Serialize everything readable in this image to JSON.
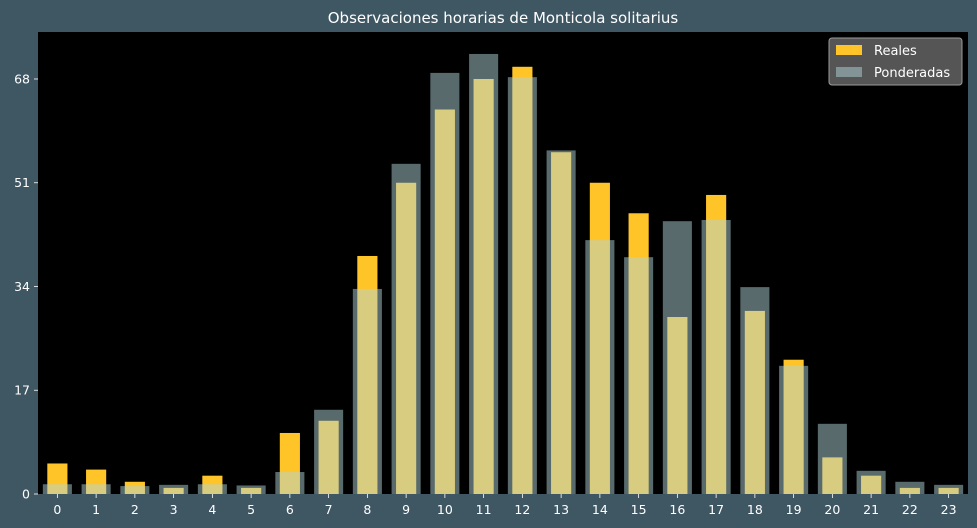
{
  "chart_data": {
    "type": "bar",
    "title": "Observaciones horarias de Monticola solitarius",
    "xlabel": "",
    "ylabel": "",
    "categories": [
      "0",
      "1",
      "2",
      "3",
      "4",
      "5",
      "6",
      "7",
      "8",
      "9",
      "10",
      "11",
      "12",
      "13",
      "14",
      "15",
      "16",
      "17",
      "18",
      "19",
      "20",
      "21",
      "22",
      "23"
    ],
    "series": [
      {
        "name": "Reales",
        "color": "#ffc428",
        "values": [
          5,
          4,
          2,
          1,
          3,
          1,
          10,
          12,
          39,
          51,
          63,
          68,
          70,
          56,
          51,
          46,
          29,
          49,
          30,
          22,
          6,
          3,
          1,
          1
        ]
      },
      {
        "name": "Ponderadas",
        "color": "#b0d4d8",
        "values": [
          1.6,
          1.6,
          1.3,
          1.5,
          1.6,
          1.4,
          3.6,
          13.8,
          33.6,
          54.1,
          69.0,
          72.1,
          68.3,
          56.3,
          41.6,
          38.8,
          44.7,
          44.9,
          33.9,
          21.0,
          11.5,
          3.8,
          2.0,
          1.5
        ]
      }
    ],
    "yticks": [
      0,
      17,
      34,
      51,
      68
    ],
    "ylim": [
      0,
      75.7
    ],
    "grid": false,
    "legend": "top-right"
  },
  "colors": {
    "figure_background": "#3f5663",
    "plot_background": "#000000",
    "text": "#ffffff",
    "legend_background": "#555555",
    "legend_border": "#9a9a9a"
  }
}
